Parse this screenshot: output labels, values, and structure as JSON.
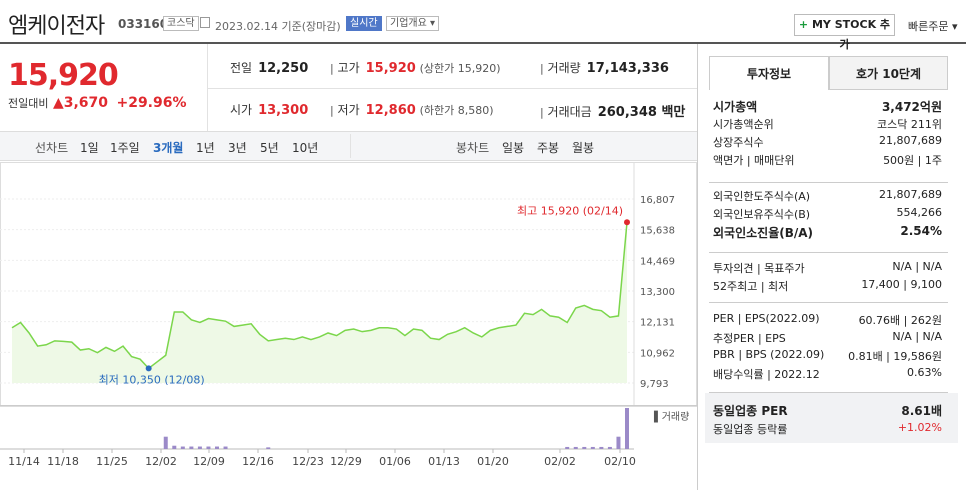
{
  "header": {
    "stock_name": "엠케이전자",
    "stock_code": "033160",
    "market_badge": "코스닥",
    "date_text": "2023.02.14 기준(장마감)",
    "live_badge": "실시간",
    "company_overview": "기업개요",
    "my_stock_label": "MY STOCK 추가",
    "quick_order": "빠른주문"
  },
  "price": {
    "current": "15,920",
    "change_label": "전일대비",
    "change_amount": "3,670",
    "change_rate": "+29.96%"
  },
  "stats": {
    "prev_close_label": "전일",
    "prev_close": "12,250",
    "high_label": "고가",
    "high": "15,920",
    "upper_limit": "(상한가 15,920)",
    "volume_label": "거래량",
    "volume": "17,143,336",
    "open_label": "시가",
    "open": "13,300",
    "low_label": "저가",
    "low": "12,860",
    "lower_limit": "(하한가 8,580)",
    "amount_label": "거래대금",
    "amount": "260,348 백만"
  },
  "chart_tabs": {
    "line_label": "선차트",
    "line_periods": [
      "1일",
      "1주일",
      "3개월",
      "1년",
      "3년",
      "5년",
      "10년"
    ],
    "active": "3개월",
    "candle_label": "봉차트",
    "candle_periods": [
      "일봉",
      "주봉",
      "월봉"
    ]
  },
  "chart_data": {
    "type": "line",
    "x_labels": [
      "11/14",
      "11/18",
      "11/25",
      "12/02",
      "12/09",
      "12/16",
      "12/23",
      "12/29",
      "01/06",
      "01/13",
      "01/20",
      "02/02",
      "02/10"
    ],
    "y_ticks": [
      "16,807",
      "15,638",
      "14,469",
      "13,300",
      "12,131",
      "10,962",
      "9,793"
    ],
    "ylim": [
      9793,
      16807
    ],
    "values": [
      11900,
      12100,
      11700,
      11200,
      11250,
      11400,
      11380,
      11350,
      11050,
      11100,
      10950,
      11150,
      11000,
      11200,
      10800,
      10700,
      10350,
      10600,
      10850,
      12500,
      12500,
      12200,
      12100,
      12250,
      12200,
      12150,
      11950,
      12000,
      12050,
      11650,
      11400,
      11450,
      11500,
      11450,
      11550,
      11450,
      11550,
      11700,
      11600,
      11800,
      11850,
      11750,
      11800,
      11900,
      11900,
      11850,
      11600,
      11850,
      11800,
      11500,
      11450,
      11650,
      11750,
      11900,
      11700,
      11550,
      11800,
      11900,
      11950,
      12000,
      12450,
      12400,
      12600,
      12350,
      12300,
      12100,
      12650,
      12750,
      12600,
      12550,
      12300,
      12350,
      15920
    ],
    "high_label": "최고 15,920 (02/14)",
    "low_label": "최저 10,350 (12/08)",
    "volume_label": "거래량",
    "volumes": [
      0,
      0,
      0,
      0,
      0,
      0,
      0,
      0,
      0,
      0,
      0,
      0,
      0,
      0,
      0,
      0,
      0,
      0,
      0.3,
      0.08,
      0.06,
      0.06,
      0.06,
      0.06,
      0.06,
      0.06,
      0,
      0,
      0,
      0,
      0.04,
      0,
      0,
      0,
      0,
      0,
      0,
      0,
      0,
      0,
      0,
      0,
      0,
      0,
      0,
      0,
      0,
      0,
      0,
      0,
      0,
      0,
      0,
      0,
      0,
      0,
      0,
      0,
      0,
      0,
      0,
      0,
      0,
      0,
      0,
      0.05,
      0.05,
      0.05,
      0.05,
      0.05,
      0.05,
      0.3,
      1.0
    ],
    "colors": {
      "line": "#7bd64b",
      "area": "#eef9e6",
      "high": "#e0292e",
      "low": "#2a6bbf",
      "volume": "#9b8ac8"
    }
  },
  "right_panel": {
    "tab_invest": "투자정보",
    "tab_orderbook": "호가 10단계",
    "rows1": [
      {
        "k": "시가총액",
        "v": "3,472억원"
      },
      {
        "k": "시가총액순위",
        "v": "코스닥 211위"
      },
      {
        "k": "상장주식수",
        "v": "21,807,689"
      },
      {
        "k": "액면가 | 매매단위",
        "v": "500원 | 1주"
      }
    ],
    "rows2": [
      {
        "k": "외국인한도주식수(A)",
        "v": "21,807,689"
      },
      {
        "k": "외국인보유주식수(B)",
        "v": "554,266"
      },
      {
        "k": "외국인소진율(B/A)",
        "v": "2.54%"
      }
    ],
    "rows3": [
      {
        "k": "투자의견 | 목표주가",
        "v": "N/A | N/A"
      },
      {
        "k": "52주최고 | 최저",
        "v": "17,400 | 9,100"
      }
    ],
    "rows4": [
      {
        "k": "PER | EPS(2022.09)",
        "v": "60.76배 | 262원"
      },
      {
        "k": "추정PER | EPS",
        "v": "N/A | N/A"
      },
      {
        "k": "PBR | BPS (2022.09)",
        "v": "0.81배 | 19,586원"
      },
      {
        "k": "배당수익률 | 2022.12",
        "v": "0.63%"
      }
    ],
    "rows5": [
      {
        "k": "동일업종 PER",
        "v": "8.61배"
      },
      {
        "k": "동일업종 등락률",
        "v": "+1.02%"
      }
    ]
  }
}
